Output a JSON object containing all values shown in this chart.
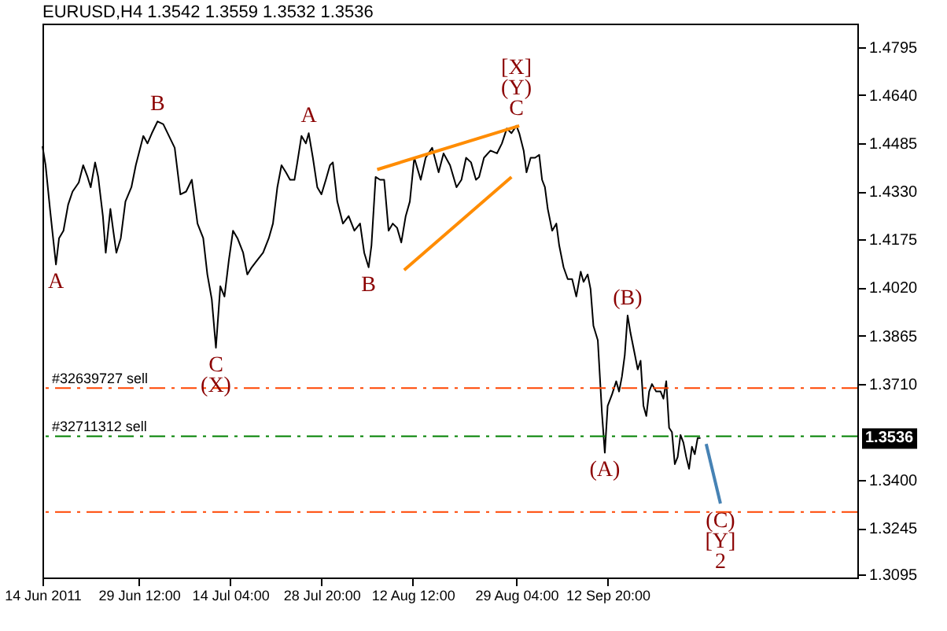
{
  "chart_data": {
    "type": "line",
    "title": "EURUSD,H4  1.3542 1.3559 1.3532 1.3536",
    "xlim": [
      "2011-06-14",
      "2011-10-22T23:00"
    ],
    "xticks": [
      {
        "value": "2011-06-14",
        "label": "14 Jun 2011"
      },
      {
        "value": "2011-06-29T12:00",
        "label": "29 Jun 12:00"
      },
      {
        "value": "2011-07-14T04:00",
        "label": "14 Jul 04:00"
      },
      {
        "value": "2011-07-28T20:00",
        "label": "28 Jul 20:00"
      },
      {
        "value": "2011-08-12T12:00",
        "label": "12 Aug 12:00"
      },
      {
        "value": "2011-08-29T04:00",
        "label": "29 Aug 04:00"
      },
      {
        "value": "2011-09-12T20:00",
        "label": "12 Sep 20:00"
      }
    ],
    "ylim": [
      1.3086,
      1.487
    ],
    "yticks": [
      1.3095,
      1.3245,
      {
        "value": 1.34,
        "label": "1.3400"
      },
      {
        "value": 1.371,
        "label": "1.3710"
      },
      1.3865,
      {
        "value": 1.402,
        "label": "1.4020"
      },
      1.4175,
      {
        "value": 1.433,
        "label": "1.4330"
      },
      1.4485,
      {
        "value": 1.464,
        "label": "1.4640"
      },
      1.4795
    ],
    "grid": false,
    "line_style": "solid",
    "series": [
      {
        "color": "#000000",
        "x": [
          "2011-06-14T00:00",
          "2011-06-14T12:00",
          "2011-06-15T05:00",
          "2011-06-15T17:00",
          "2011-06-16T04:00",
          "2011-06-16T16:00",
          "2011-06-17T09:00",
          "2011-06-18T03:00",
          "2011-06-18T20:00",
          "2011-06-19T20:00",
          "2011-06-20T13:00",
          "2011-06-21T06:00",
          "2011-06-21T18:00",
          "2011-06-22T11:00",
          "2011-06-22T23:00",
          "2011-06-23T17:00",
          "2011-06-24T04:00",
          "2011-06-24T22:00",
          "2011-06-25T09:00",
          "2011-06-25T21:00",
          "2011-06-26T14:00",
          "2011-06-27T08:00",
          "2011-06-28T07:00",
          "2011-06-29T00:00",
          "2011-06-30T05:00",
          "2011-06-30T21:00",
          "2011-07-01T14:00",
          "2011-07-02T12:00",
          "2011-07-03T10:00",
          "2011-07-04T08:00",
          "2011-07-05T06:00",
          "2011-07-06T04:00",
          "2011-07-07T02:00",
          "2011-07-08T00:00",
          "2011-07-08T22:00",
          "2011-07-09T20:00",
          "2011-07-10T12:00",
          "2011-07-11T05:00",
          "2011-07-11T21:00",
          "2011-07-12T14:00",
          "2011-07-13T06:00",
          "2011-07-13T23:00",
          "2011-07-14T15:00",
          "2011-07-15T08:00",
          "2011-07-16T06:00",
          "2011-07-16T22:00",
          "2011-07-17T15:00",
          "2011-07-18T13:00",
          "2011-07-19T11:00",
          "2011-07-20T09:00",
          "2011-07-21T01:00",
          "2011-07-21T18:00",
          "2011-07-22T10:00",
          "2011-07-23T03:00",
          "2011-07-23T19:00",
          "2011-07-24T12:00",
          "2011-07-24T23:00",
          "2011-07-25T15:00",
          "2011-07-26T08:00",
          "2011-07-26T19:00",
          "2011-07-27T11:00",
          "2011-07-28T04:00",
          "2011-07-28T20:00",
          "2011-07-29T13:00",
          "2011-07-30T05:00",
          "2011-07-30T16:00",
          "2011-07-31T09:00",
          "2011-08-01T07:00",
          "2011-08-02T05:00",
          "2011-08-03T03:00",
          "2011-08-04T01:00",
          "2011-08-04T17:00",
          "2011-08-05T10:00",
          "2011-08-05T21:00",
          "2011-08-06T13:00",
          "2011-08-07T06:00",
          "2011-08-07T22:00",
          "2011-08-08T15:00",
          "2011-08-09T07:00",
          "2011-08-10T00:00",
          "2011-08-10T16:00",
          "2011-08-11T09:00",
          "2011-08-12T01:00",
          "2011-08-12T18:00",
          "2011-08-13T19:00",
          "2011-08-14T14:00",
          "2011-08-15T15:00",
          "2011-08-16T16:00",
          "2011-08-17T11:00",
          "2011-08-18T12:00",
          "2011-08-19T13:00",
          "2011-08-20T08:00",
          "2011-08-21T02:00",
          "2011-08-21T21:00",
          "2011-08-22T16:00",
          "2011-08-23T04:00",
          "2011-08-23T23:00",
          "2011-08-25T00:00",
          "2011-08-26T01:00",
          "2011-08-26T20:00",
          "2011-08-27T15:00",
          "2011-08-28T09:00",
          "2011-08-29T04:00",
          "2011-08-29T15:00",
          "2011-08-30T08:00",
          "2011-08-30T19:00",
          "2011-08-31T11:00",
          "2011-09-01T04:00",
          "2011-09-01T20:00",
          "2011-09-02T07:00",
          "2011-09-02T18:00",
          "2011-09-03T05:00",
          "2011-09-03T22:00",
          "2011-09-04T14:00",
          "2011-09-05T01:00",
          "2011-09-05T18:00",
          "2011-09-06T10:00",
          "2011-09-07T03:00",
          "2011-09-07T19:00",
          "2011-09-08T12:00",
          "2011-09-08T23:00",
          "2011-09-09T15:00",
          "2011-09-10T02:00",
          "2011-09-10T13:00",
          "2011-09-11T06:00",
          "2011-09-11T22:00",
          "2011-09-12T09:00",
          "2011-09-12T20:00",
          "2011-09-13T13:00",
          "2011-09-14T05:00",
          "2011-09-14T16:00",
          "2011-09-15T03:00",
          "2011-09-15T14:00",
          "2011-09-16T01:00",
          "2011-09-16T12:00",
          "2011-09-17T05:00",
          "2011-09-17T16:00",
          "2011-09-18T03:00",
          "2011-09-18T14:00",
          "2011-09-19T01:00",
          "2011-09-19T12:00",
          "2011-09-19T23:00",
          "2011-09-20T15:00",
          "2011-09-21T08:00",
          "2011-09-21T19:00",
          "2011-09-22T06:00",
          "2011-09-22T17:00",
          "2011-09-23T04:00",
          "2011-09-23T15:00",
          "2011-09-24T02:00",
          "2011-09-24T13:00",
          "2011-09-25T00:00",
          "2011-09-25T11:00",
          "2011-09-25T22:00",
          "2011-09-26T09:00",
          "2011-09-26T20:00",
          "2011-09-27T07:00",
          "2011-09-27T18:00"
        ],
        "values": [
          1.4475,
          1.4414,
          1.4273,
          1.4179,
          1.4094,
          1.4179,
          1.4203,
          1.4287,
          1.4329,
          1.4358,
          1.4414,
          1.4376,
          1.4343,
          1.4423,
          1.4376,
          1.425,
          1.4132,
          1.4273,
          1.4203,
          1.4132,
          1.4179,
          1.4297,
          1.4343,
          1.4414,
          1.4508,
          1.4484,
          1.4517,
          1.4555,
          1.4546,
          1.4508,
          1.447,
          1.432,
          1.4329,
          1.4367,
          1.4226,
          1.4179,
          1.4062,
          1.3982,
          1.3826,
          1.4024,
          1.3991,
          1.4109,
          1.4203,
          1.4179,
          1.4132,
          1.4062,
          1.4085,
          1.4109,
          1.4132,
          1.4179,
          1.4226,
          1.4343,
          1.4414,
          1.4391,
          1.4367,
          1.4367,
          1.4423,
          1.4508,
          1.4484,
          1.4517,
          1.4438,
          1.4343,
          1.432,
          1.4367,
          1.4414,
          1.4423,
          1.4297,
          1.4226,
          1.425,
          1.4203,
          1.4226,
          1.4132,
          1.4085,
          1.4156,
          1.4376,
          1.4367,
          1.4367,
          1.4203,
          1.4226,
          1.4212,
          1.4165,
          1.425,
          1.4297,
          1.4438,
          1.4367,
          1.4438,
          1.447,
          1.4391,
          1.4452,
          1.4414,
          1.4343,
          1.4367,
          1.4438,
          1.4423,
          1.4367,
          1.4376,
          1.4438,
          1.4461,
          1.4452,
          1.4484,
          1.4532,
          1.4517,
          1.4541,
          1.4517,
          1.4461,
          1.4391,
          1.4438,
          1.4438,
          1.4447,
          1.4367,
          1.4343,
          1.4273,
          1.4203,
          1.4226,
          1.4156,
          1.4085,
          1.4047,
          1.4047,
          1.3991,
          1.4071,
          1.4038,
          1.4062,
          1.4015,
          1.3897,
          1.385,
          1.3615,
          1.3488,
          1.3639,
          1.3676,
          1.3718,
          1.3685,
          1.3733,
          1.3803,
          1.393,
          1.3874,
          1.3803,
          1.3756,
          1.3784,
          1.3639,
          1.3606,
          1.3685,
          1.3709,
          1.3685,
          1.3685,
          1.3662,
          1.3718,
          1.3568,
          1.3554,
          1.3451,
          1.3474,
          1.3545,
          1.3521,
          1.3474,
          1.3436,
          1.3507,
          1.3483,
          1.3535,
          1.3535
        ]
      },
      {
        "color": "#ff8c00",
        "x": [
          "2011-08-06T19:00",
          "2011-08-29T15:00"
        ],
        "values": [
          1.44,
          1.4541
        ]
      },
      {
        "color": "#ff8c00",
        "x": [
          "2011-08-11T03:00",
          "2011-08-28T09:00"
        ],
        "values": [
          1.4076,
          1.4376
        ]
      },
      {
        "color": "#4682b4",
        "x": [
          "2011-09-28T16:00",
          "2011-09-30T23:00"
        ],
        "values": [
          1.3516,
          1.3324
        ]
      }
    ],
    "ref_lines": [
      {
        "axis": "y",
        "value": 1.3696,
        "label": "#32639727 sell",
        "color": "#ff4500",
        "line_style": "dashed"
      },
      {
        "axis": "y",
        "value": 1.3541,
        "label": "#32711312 sell",
        "color": "#008000",
        "line_style": "dashed"
      },
      {
        "axis": "y",
        "value": 1.3297,
        "color": "#ff4500",
        "line_style": "dashed"
      }
    ],
    "annotations": [
      {
        "text": "A",
        "x": "2011-06-16T04:00",
        "y": 1.4094
      },
      {
        "text": "B",
        "x": "2011-07-02T12:00",
        "y": 1.4555
      },
      {
        "text": "C",
        "x": "2011-07-11T21:00",
        "y": 1.3826
      },
      {
        "text": "(X)",
        "x": "2011-07-11T21:00",
        "y": 1.3826
      },
      {
        "text": "A",
        "x": "2011-07-26T19:00",
        "y": 1.4517
      },
      {
        "text": "B",
        "x": "2011-08-05T10:00",
        "y": 1.4085
      },
      {
        "text": "C",
        "x": "2011-08-29T04:00",
        "y": 1.4541
      },
      {
        "text": "(Y)",
        "x": "2011-08-29T04:00",
        "y": 1.4541
      },
      {
        "text": "[X]",
        "x": "2011-08-29T04:00",
        "y": 1.4541
      },
      {
        "text": "(A)",
        "x": "2011-09-12T09:00",
        "y": 1.3488
      },
      {
        "text": "(B)",
        "x": "2011-09-16T01:00",
        "y": 1.393
      },
      {
        "text": "(C)",
        "x": "2011-09-30T23:00",
        "y": 1.3324
      },
      {
        "text": "[Y]",
        "x": "2011-09-30T23:00",
        "y": 1.3324
      },
      {
        "text": "2",
        "x": "2011-09-30T23:00",
        "y": 1.3324
      },
      {
        "text": "1.3536",
        "y": 1.3536
      }
    ]
  }
}
